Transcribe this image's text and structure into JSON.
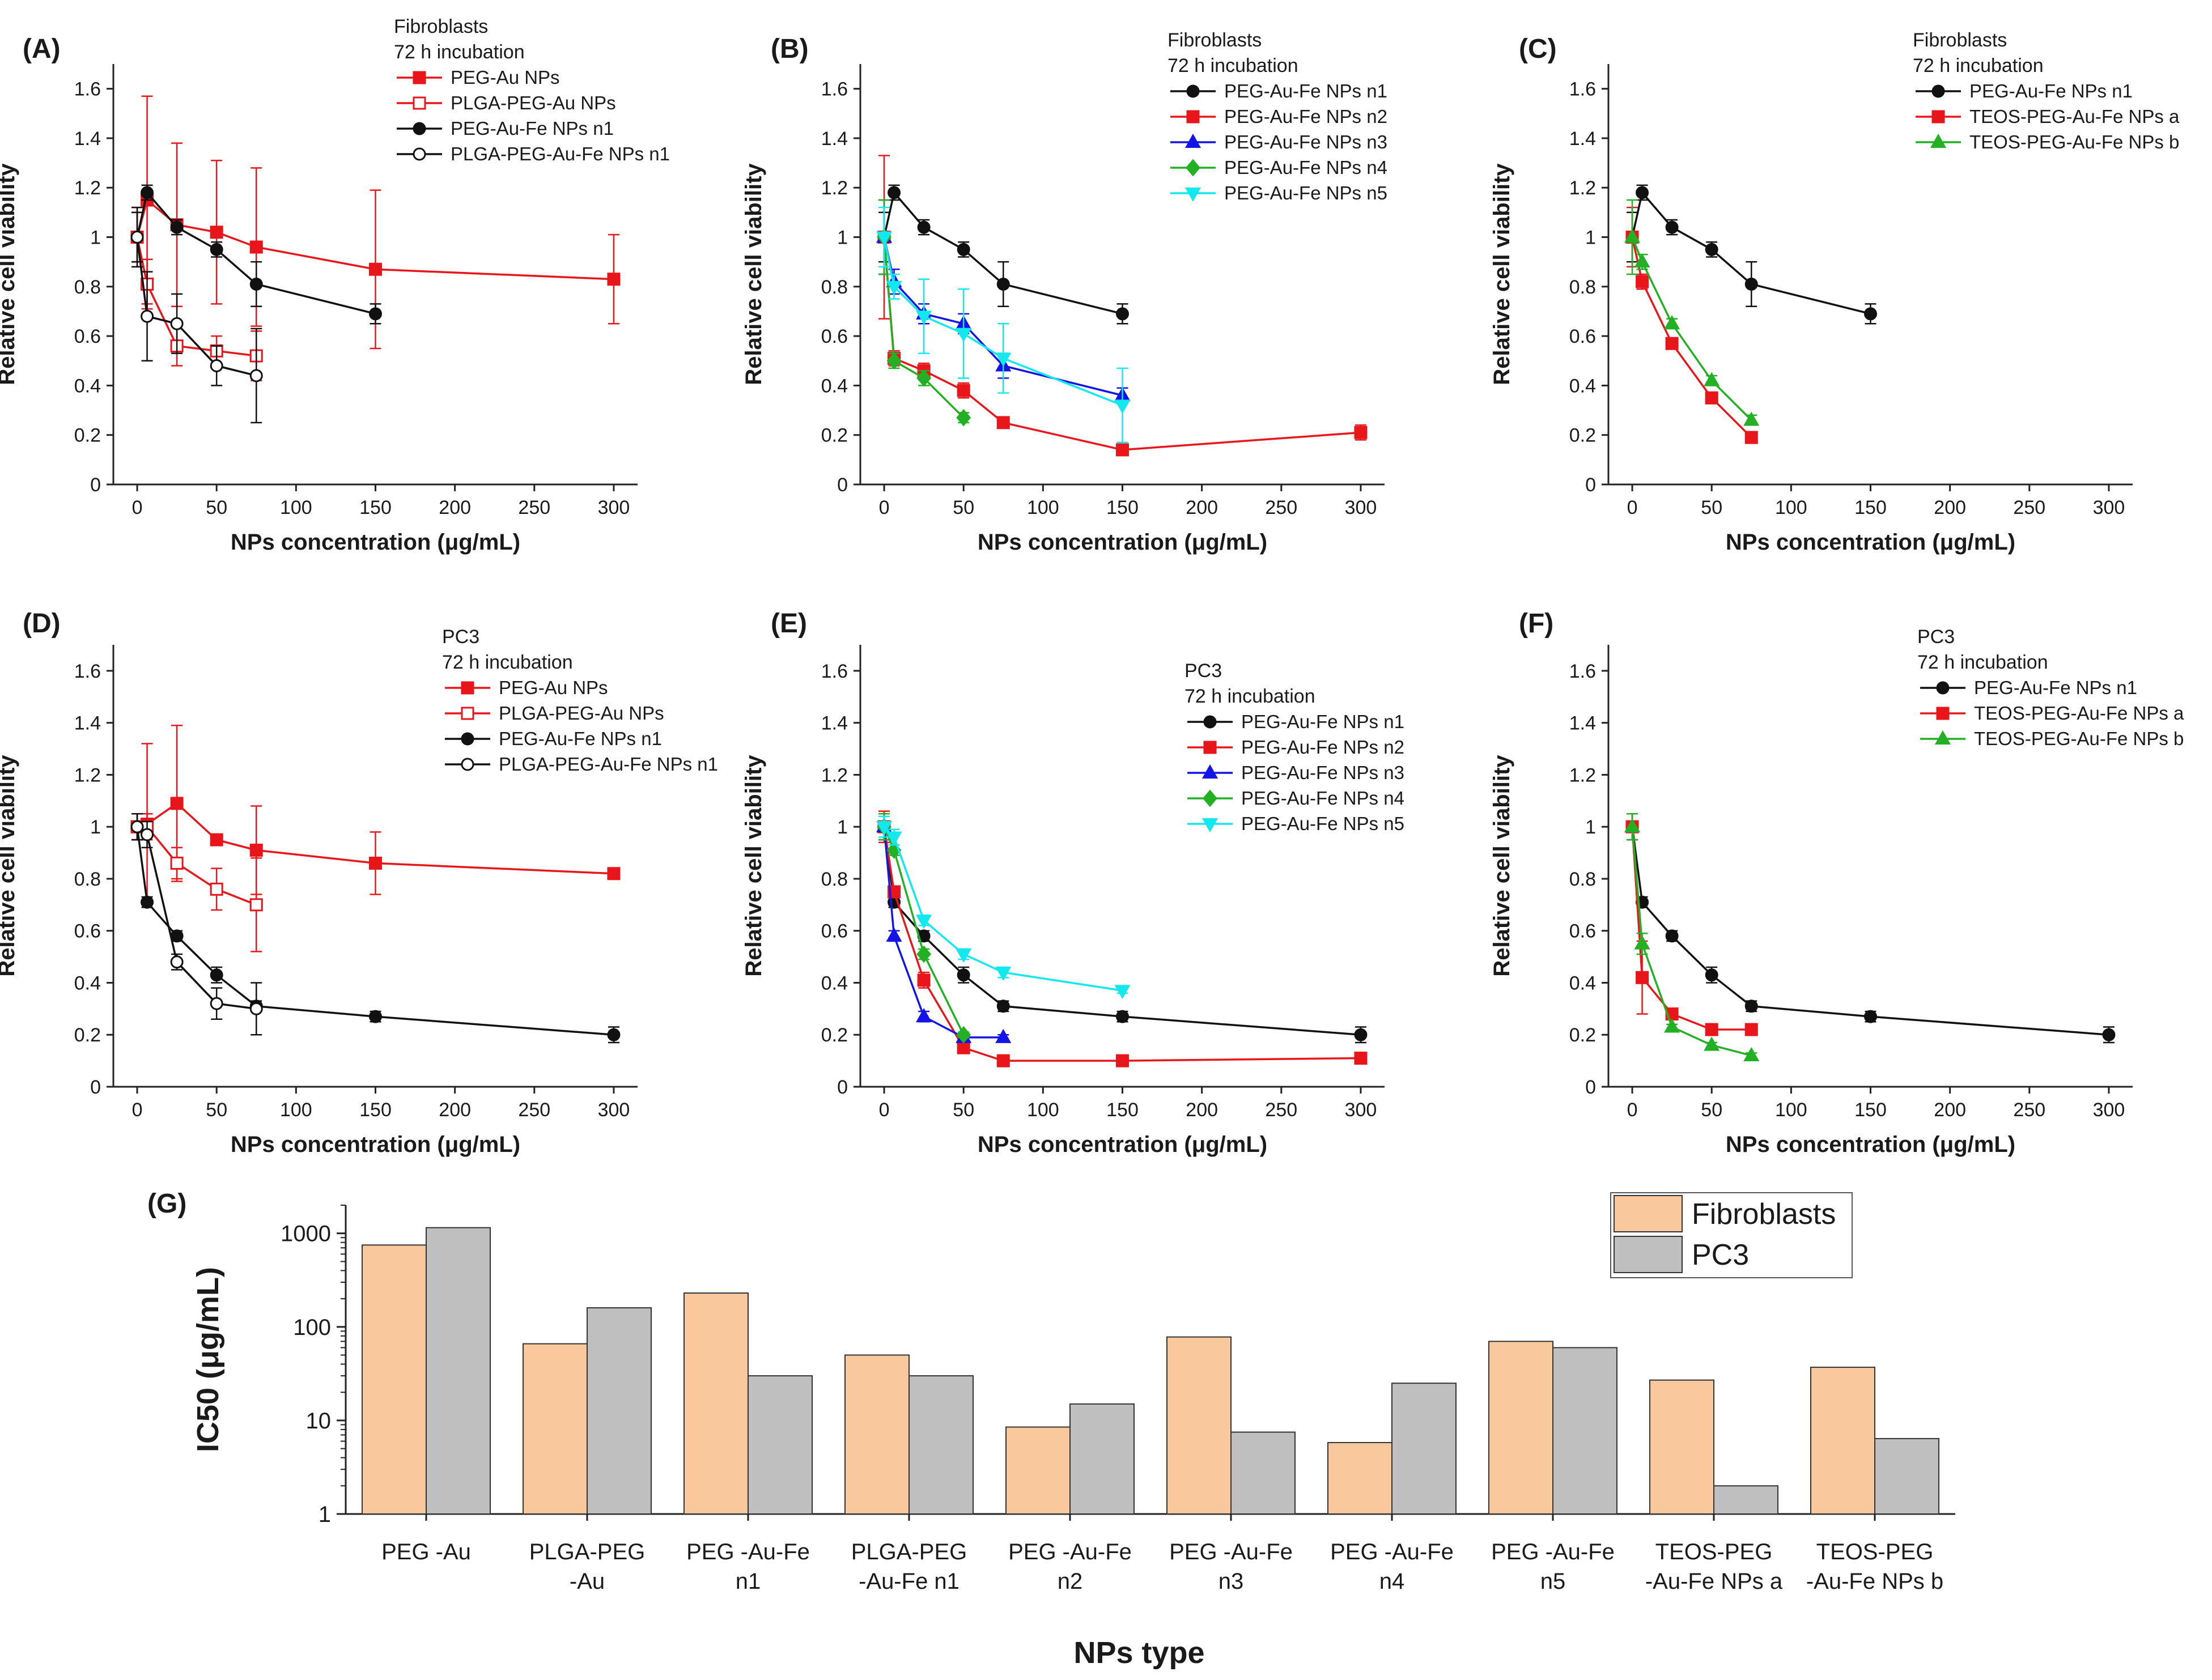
{
  "figure": {
    "type": "multi-panel scientific figure"
  },
  "chart_data": [
    {
      "type": "line",
      "panel": "(A)",
      "cell": "Fibroblasts",
      "incubation": "72 h incubation",
      "xlabel": "NPs concentration (μg/mL)",
      "ylabel": "Relative cell viability",
      "xlim": [
        -15,
        315
      ],
      "xticks": [
        "0",
        "50",
        "100",
        "150",
        "200",
        "250",
        "300"
      ],
      "ylim": [
        0,
        1.7
      ],
      "yticks": [
        "0",
        "0.2",
        "0.4",
        "0.6",
        "0.8",
        "1",
        "1.2",
        "1.4",
        "1.6"
      ],
      "legend": "top-right",
      "series": [
        {
          "name": "PEG-Au NPs",
          "color": "#e8161b",
          "marker": "square",
          "filled": true,
          "x": [
            0,
            6.25,
            25,
            50,
            75,
            150,
            300
          ],
          "y": [
            1.0,
            1.15,
            1.05,
            1.02,
            0.96,
            0.87,
            0.83
          ],
          "err": [
            0.12,
            0.42,
            0.33,
            0.29,
            0.32,
            0.32,
            0.18
          ]
        },
        {
          "name": "PLGA-PEG-Au NPs",
          "color": "#e8161b",
          "marker": "square",
          "filled": false,
          "x": [
            0,
            6.25,
            25,
            50,
            75
          ],
          "y": [
            1.0,
            0.81,
            0.56,
            0.54,
            0.52
          ],
          "err": [
            0.1,
            0.1,
            0.08,
            0.06,
            0.1
          ]
        },
        {
          "name": "PEG-Au-Fe NPs n1",
          "color": "#111111",
          "marker": "circle",
          "filled": true,
          "x": [
            0,
            6.25,
            25,
            50,
            75,
            150
          ],
          "y": [
            1.0,
            1.18,
            1.04,
            0.95,
            0.81,
            0.69
          ],
          "err": [
            0.1,
            0.03,
            0.03,
            0.03,
            0.09,
            0.04
          ]
        },
        {
          "name": "PLGA-PEG-Au-Fe NPs n1",
          "color": "#111111",
          "marker": "circle",
          "filled": false,
          "x": [
            0,
            6.25,
            25,
            50,
            75
          ],
          "y": [
            1.0,
            0.68,
            0.65,
            0.48,
            0.44
          ],
          "err": [
            0.12,
            0.18,
            0.12,
            0.08,
            0.19
          ]
        }
      ]
    },
    {
      "type": "line",
      "panel": "(B)",
      "cell": "Fibroblasts",
      "incubation": "72 h incubation",
      "xlabel": "NPs concentration (μg/mL)",
      "ylabel": "Relative cell viability",
      "xlim": [
        -15,
        315
      ],
      "xticks": [
        "0",
        "50",
        "100",
        "150",
        "200",
        "250",
        "300"
      ],
      "ylim": [
        0,
        1.7
      ],
      "yticks": [
        "0",
        "0.2",
        "0.4",
        "0.6",
        "0.8",
        "1",
        "1.2",
        "1.4",
        "1.6"
      ],
      "legend": "top-right",
      "series": [
        {
          "name": "PEG-Au-Fe NPs n1",
          "color": "#111111",
          "marker": "circle",
          "filled": true,
          "x": [
            0,
            6.25,
            25,
            50,
            75,
            150
          ],
          "y": [
            1.0,
            1.18,
            1.04,
            0.95,
            0.81,
            0.69
          ],
          "err": [
            0.1,
            0.03,
            0.03,
            0.03,
            0.09,
            0.04
          ]
        },
        {
          "name": "PEG-Au-Fe NPs n2",
          "color": "#e8161b",
          "marker": "square",
          "filled": true,
          "x": [
            0,
            6.25,
            25,
            50,
            75,
            150,
            300
          ],
          "y": [
            1.0,
            0.51,
            0.46,
            0.38,
            0.25,
            0.14,
            0.21
          ],
          "err": [
            0.33,
            0.03,
            0.03,
            0.03,
            0.02,
            0.01,
            0.03
          ]
        },
        {
          "name": "PEG-Au-Fe NPs n3",
          "color": "#1414e6",
          "marker": "triangle-up",
          "filled": true,
          "x": [
            0,
            6.25,
            25,
            50,
            75,
            150
          ],
          "y": [
            1.0,
            0.82,
            0.69,
            0.65,
            0.48,
            0.36
          ],
          "err": [
            0.15,
            0.05,
            0.04,
            0.04,
            0.05,
            0.03
          ]
        },
        {
          "name": "PEG-Au-Fe NPs n4",
          "color": "#24b024",
          "marker": "diamond",
          "filled": true,
          "x": [
            0,
            6.25,
            25,
            50
          ],
          "y": [
            1.0,
            0.5,
            0.43,
            0.27
          ],
          "err": [
            0.15,
            0.03,
            0.03,
            0.02
          ]
        },
        {
          "name": "PEG-Au-Fe NPs n5",
          "color": "#13e8ef",
          "marker": "triangle-down",
          "filled": true,
          "x": [
            0,
            6.25,
            25,
            50,
            75,
            150
          ],
          "y": [
            1.0,
            0.8,
            0.68,
            0.61,
            0.51,
            0.32
          ],
          "err": [
            0.12,
            0.05,
            0.15,
            0.18,
            0.14,
            0.15
          ]
        }
      ]
    },
    {
      "type": "line",
      "panel": "(C)",
      "cell": "Fibroblasts",
      "incubation": "72 h incubation",
      "xlabel": "NPs concentration (μg/mL)",
      "ylabel": "Relative cell viability",
      "xlim": [
        -15,
        315
      ],
      "xticks": [
        "0",
        "50",
        "100",
        "150",
        "200",
        "250",
        "300"
      ],
      "ylim": [
        0,
        1.7
      ],
      "yticks": [
        "0",
        "0.2",
        "0.4",
        "0.6",
        "0.8",
        "1",
        "1.2",
        "1.4",
        "1.6"
      ],
      "legend": "top-right",
      "series": [
        {
          "name": "PEG-Au-Fe NPs n1",
          "color": "#111111",
          "marker": "circle",
          "filled": true,
          "x": [
            0,
            6.25,
            25,
            50,
            75,
            150
          ],
          "y": [
            1.0,
            1.18,
            1.04,
            0.95,
            0.81,
            0.69
          ],
          "err": [
            0.1,
            0.03,
            0.03,
            0.03,
            0.09,
            0.04
          ]
        },
        {
          "name": "TEOS-PEG-Au-Fe NPs a",
          "color": "#e8161b",
          "marker": "square",
          "filled": true,
          "x": [
            0,
            6.25,
            25,
            50,
            75
          ],
          "y": [
            1.0,
            0.82,
            0.57,
            0.35,
            0.19
          ],
          "err": [
            0.12,
            0.03,
            0.02,
            0.02,
            0.02
          ]
        },
        {
          "name": "TEOS-PEG-Au-Fe NPs b",
          "color": "#24b024",
          "marker": "triangle-up",
          "filled": true,
          "x": [
            0,
            6.25,
            25,
            50,
            75
          ],
          "y": [
            1.0,
            0.9,
            0.65,
            0.42,
            0.26
          ],
          "err": [
            0.15,
            0.03,
            0.02,
            0.02,
            0.02
          ]
        }
      ]
    },
    {
      "type": "line",
      "panel": "(D)",
      "cell": "PC3",
      "incubation": "72 h incubation",
      "xlabel": "NPs concentration (μg/mL)",
      "ylabel": "Relative cell viability",
      "xlim": [
        -15,
        315
      ],
      "xticks": [
        "0",
        "50",
        "100",
        "150",
        "200",
        "250",
        "300"
      ],
      "ylim": [
        0,
        1.7
      ],
      "yticks": [
        "0",
        "0.2",
        "0.4",
        "0.6",
        "0.8",
        "1",
        "1.2",
        "1.4",
        "1.6"
      ],
      "legend": "top-right",
      "series": [
        {
          "name": "PEG-Au NPs",
          "color": "#e8161b",
          "marker": "square",
          "filled": true,
          "x": [
            0,
            6.25,
            25,
            50,
            75,
            150,
            300
          ],
          "y": [
            1.0,
            1.01,
            1.09,
            0.95,
            0.91,
            0.86,
            0.82
          ],
          "err": [
            0.05,
            0.31,
            0.3,
            0.02,
            0.17,
            0.12,
            0.02
          ]
        },
        {
          "name": "PLGA-PEG-Au NPs",
          "color": "#e8161b",
          "marker": "square",
          "filled": false,
          "x": [
            0,
            6.25,
            25,
            50,
            75
          ],
          "y": [
            1.0,
            1.0,
            0.86,
            0.76,
            0.7
          ],
          "err": [
            0.05,
            0.05,
            0.06,
            0.08,
            0.18
          ]
        },
        {
          "name": "PEG-Au-Fe NPs n1",
          "color": "#111111",
          "marker": "circle",
          "filled": true,
          "x": [
            0,
            6.25,
            25,
            50,
            75,
            150,
            300
          ],
          "y": [
            1.0,
            0.71,
            0.58,
            0.43,
            0.31,
            0.27,
            0.2
          ],
          "err": [
            0.05,
            0.02,
            0.02,
            0.03,
            0.02,
            0.02,
            0.03
          ]
        },
        {
          "name": "PLGA-PEG-Au-Fe NPs n1",
          "color": "#111111",
          "marker": "circle",
          "filled": false,
          "x": [
            0,
            6.25,
            25,
            50,
            75
          ],
          "y": [
            1.0,
            0.97,
            0.48,
            0.32,
            0.3
          ],
          "err": [
            0.05,
            0.05,
            0.03,
            0.06,
            0.1
          ]
        }
      ]
    },
    {
      "type": "line",
      "panel": "(E)",
      "cell": "PC3",
      "incubation": "72 h incubation",
      "xlabel": "NPs concentration (μg/mL)",
      "ylabel": "Relative cell viability",
      "xlim": [
        -15,
        315
      ],
      "xticks": [
        "0",
        "50",
        "100",
        "150",
        "200",
        "250",
        "300"
      ],
      "ylim": [
        0,
        1.7
      ],
      "yticks": [
        "0",
        "0.2",
        "0.4",
        "0.6",
        "0.8",
        "1",
        "1.2",
        "1.4",
        "1.6"
      ],
      "legend": "top-right",
      "series": [
        {
          "name": "PEG-Au-Fe NPs n1",
          "color": "#111111",
          "marker": "circle",
          "filled": true,
          "x": [
            0,
            6.25,
            25,
            50,
            75,
            150,
            300
          ],
          "y": [
            1.0,
            0.71,
            0.58,
            0.43,
            0.31,
            0.27,
            0.2
          ],
          "err": [
            0.05,
            0.02,
            0.02,
            0.03,
            0.02,
            0.02,
            0.03
          ]
        },
        {
          "name": "PEG-Au-Fe NPs n2",
          "color": "#e8161b",
          "marker": "square",
          "filled": true,
          "x": [
            0,
            6.25,
            25,
            50,
            75,
            150,
            300
          ],
          "y": [
            1.0,
            0.75,
            0.41,
            0.15,
            0.1,
            0.1,
            0.11
          ],
          "err": [
            0.06,
            0.02,
            0.03,
            0.02,
            0.01,
            0.01,
            0.01
          ]
        },
        {
          "name": "PEG-Au-Fe NPs n3",
          "color": "#1414e6",
          "marker": "triangle-up",
          "filled": true,
          "x": [
            0,
            6.25,
            25,
            50,
            75
          ],
          "y": [
            1.0,
            0.58,
            0.27,
            0.19,
            0.19
          ],
          "err": [
            0.05,
            0.02,
            0.02,
            0.01,
            0.01
          ]
        },
        {
          "name": "PEG-Au-Fe NPs n4",
          "color": "#24b024",
          "marker": "diamond",
          "filled": true,
          "x": [
            0,
            6.25,
            25,
            50
          ],
          "y": [
            1.0,
            0.91,
            0.51,
            0.2
          ],
          "err": [
            0.05,
            0.02,
            0.02,
            0.01
          ]
        },
        {
          "name": "PEG-Au-Fe NPs n5",
          "color": "#13e8ef",
          "marker": "triangle-down",
          "filled": true,
          "x": [
            0,
            6.25,
            25,
            50,
            75,
            150
          ],
          "y": [
            1.0,
            0.96,
            0.64,
            0.51,
            0.44,
            0.37
          ],
          "err": [
            0.04,
            0.03,
            0.02,
            0.02,
            0.02,
            0.01
          ]
        }
      ]
    },
    {
      "type": "line",
      "panel": "(F)",
      "cell": "PC3",
      "incubation": "72 h incubation",
      "xlabel": "NPs concentration (μg/mL)",
      "ylabel": "Relative cell viability",
      "xlim": [
        -15,
        315
      ],
      "xticks": [
        "0",
        "50",
        "100",
        "150",
        "200",
        "250",
        "300"
      ],
      "ylim": [
        0,
        1.7
      ],
      "yticks": [
        "0",
        "0.2",
        "0.4",
        "0.6",
        "0.8",
        "1",
        "1.2",
        "1.4",
        "1.6"
      ],
      "legend": "top-right",
      "series": [
        {
          "name": "PEG-Au-Fe NPs n1",
          "color": "#111111",
          "marker": "circle",
          "filled": true,
          "x": [
            0,
            6.25,
            25,
            50,
            75,
            150,
            300
          ],
          "y": [
            1.0,
            0.71,
            0.58,
            0.43,
            0.31,
            0.27,
            0.2
          ],
          "err": [
            0.05,
            0.02,
            0.02,
            0.03,
            0.02,
            0.02,
            0.03
          ]
        },
        {
          "name": "TEOS-PEG-Au-Fe NPs a",
          "color": "#e8161b",
          "marker": "square",
          "filled": true,
          "x": [
            0,
            6.25,
            25,
            50,
            75
          ],
          "y": [
            1.0,
            0.42,
            0.28,
            0.22,
            0.22
          ],
          "err": [
            0.05,
            0.14,
            0.02,
            0.01,
            0.01
          ]
        },
        {
          "name": "TEOS-PEG-Au-Fe NPs b",
          "color": "#24b024",
          "marker": "triangle-up",
          "filled": true,
          "x": [
            0,
            6.25,
            25,
            50,
            75
          ],
          "y": [
            1.0,
            0.55,
            0.23,
            0.16,
            0.12
          ],
          "err": [
            0.05,
            0.04,
            0.01,
            0.01,
            0.01
          ]
        }
      ]
    },
    {
      "type": "bar",
      "panel": "(G)",
      "yscale": "log",
      "xlabel": "NPs type",
      "ylabel": "IC50 (μg/mL)",
      "ylim": [
        1,
        2000
      ],
      "yticks": [
        "1",
        "10",
        "100",
        "1000"
      ],
      "legend": "top-right",
      "categories": [
        [
          "PEG -Au"
        ],
        [
          "PLGA-PEG",
          "-Au"
        ],
        [
          "PEG -Au-Fe",
          "n1"
        ],
        [
          "PLGA-PEG",
          "-Au-Fe n1"
        ],
        [
          "PEG -Au-Fe",
          "n2"
        ],
        [
          "PEG -Au-Fe",
          "n3"
        ],
        [
          "PEG -Au-Fe",
          "n4"
        ],
        [
          "PEG -Au-Fe",
          "n5"
        ],
        [
          "TEOS-PEG",
          "-Au-Fe NPs a"
        ],
        [
          "TEOS-PEG",
          "-Au-Fe NPs b"
        ]
      ],
      "series": [
        {
          "name": "Fibroblasts",
          "color": "#f9c99d",
          "values": [
            750,
            66,
            230,
            50,
            8.5,
            78,
            5.8,
            70,
            27,
            37
          ]
        },
        {
          "name": "PC3",
          "color": "#bfbfbf",
          "values": [
            1150,
            160,
            30,
            30,
            15,
            7.5,
            25,
            60,
            2,
            6.4
          ]
        }
      ]
    }
  ]
}
